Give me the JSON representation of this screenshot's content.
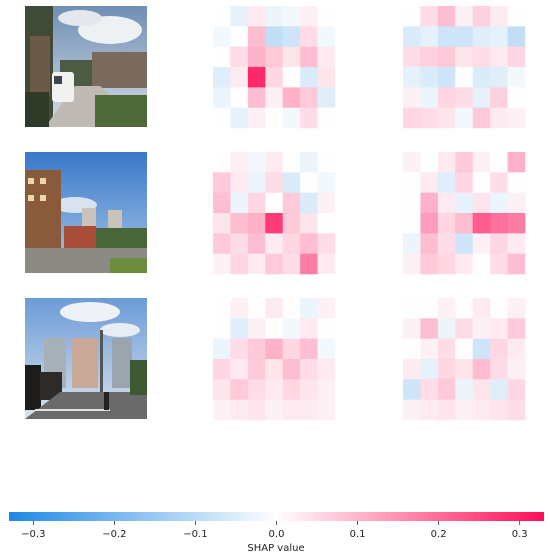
{
  "chart_data": {
    "type": "heatmap",
    "title": "",
    "xlabel": "SHAP value",
    "colorbar": {
      "label": "SHAP value",
      "ticks": [
        -0.3,
        -0.2,
        -0.1,
        0.0,
        0.1,
        0.2,
        0.3
      ],
      "tick_labels": [
        "−0.3",
        "−0.2",
        "−0.1",
        "0.0",
        "0.1",
        "0.2",
        "0.3"
      ],
      "range": [
        -0.33,
        0.33
      ],
      "colors": {
        "negative": "#1e88e5",
        "neutral": "#ffffff",
        "positive": "#ff0d57"
      }
    },
    "rows": [
      {
        "image": "street with parked white van and trees",
        "panels": [
          [
            [
              0.0,
              -0.04,
              0.03,
              -0.03,
              -0.02,
              0.02,
              0.0
            ],
            [
              -0.02,
              0.0,
              0.1,
              -0.1,
              -0.08,
              0.05,
              -0.02
            ],
            [
              0.0,
              0.05,
              0.12,
              0.08,
              0.04,
              0.1,
              0.03
            ],
            [
              -0.05,
              0.03,
              0.33,
              0.06,
              0.0,
              -0.06,
              0.04
            ],
            [
              -0.03,
              0.0,
              0.1,
              0.02,
              0.12,
              0.08,
              -0.05
            ],
            [
              0.0,
              -0.04,
              0.02,
              0.0,
              -0.02,
              0.05,
              0.0
            ]
          ],
          [
            [
              0.0,
              0.05,
              0.1,
              0.02,
              0.07,
              0.03,
              0.0
            ],
            [
              -0.06,
              -0.04,
              -0.08,
              -0.08,
              -0.05,
              -0.04,
              -0.1
            ],
            [
              0.05,
              0.07,
              0.08,
              0.04,
              0.05,
              0.03,
              0.06
            ],
            [
              -0.04,
              -0.06,
              -0.08,
              0.0,
              -0.06,
              -0.05,
              -0.02
            ],
            [
              0.02,
              -0.03,
              0.06,
              0.05,
              -0.04,
              0.07,
              0.0
            ],
            [
              0.06,
              0.05,
              0.04,
              -0.02,
              0.08,
              0.03,
              0.02
            ]
          ]
        ]
      },
      {
        "image": "buildings and courtyard under blue sky",
        "panels": [
          [
            [
              0.0,
              0.02,
              -0.02,
              0.03,
              0.0,
              -0.03,
              0.0
            ],
            [
              0.08,
              0.03,
              -0.03,
              0.05,
              -0.06,
              0.0,
              -0.02
            ],
            [
              0.1,
              -0.03,
              0.06,
              0.0,
              0.08,
              -0.06,
              0.02
            ],
            [
              0.04,
              0.1,
              0.12,
              0.3,
              0.08,
              0.04,
              0.0
            ],
            [
              0.08,
              0.05,
              0.1,
              0.03,
              0.06,
              0.1,
              0.05
            ],
            [
              0.02,
              0.06,
              0.03,
              0.08,
              0.05,
              0.2,
              0.03
            ]
          ],
          [
            [
              0.02,
              0.0,
              0.03,
              0.08,
              0.02,
              0.0,
              0.12
            ],
            [
              0.0,
              0.03,
              -0.05,
              0.06,
              0.0,
              0.05,
              0.0
            ],
            [
              0.0,
              0.12,
              0.03,
              -0.04,
              0.04,
              -0.03,
              0.02
            ],
            [
              0.0,
              0.15,
              0.06,
              0.1,
              0.25,
              0.22,
              0.2
            ],
            [
              -0.03,
              0.1,
              0.05,
              -0.08,
              0.02,
              0.06,
              0.03
            ],
            [
              0.02,
              0.08,
              0.06,
              0.03,
              0.0,
              0.05,
              0.1
            ]
          ]
        ]
      },
      {
        "image": "street scene with tall buildings and pedestrian",
        "panels": [
          [
            [
              0.0,
              0.02,
              0.0,
              0.03,
              0.0,
              -0.03,
              0.02
            ],
            [
              0.0,
              -0.05,
              0.02,
              0.0,
              -0.02,
              0.03,
              0.0
            ],
            [
              -0.03,
              0.05,
              0.08,
              0.12,
              0.06,
              0.1,
              -0.02
            ],
            [
              0.06,
              0.03,
              0.08,
              0.04,
              0.1,
              0.05,
              0.03
            ],
            [
              0.04,
              0.08,
              0.05,
              0.03,
              0.06,
              0.04,
              0.02
            ],
            [
              0.02,
              0.03,
              0.04,
              0.02,
              0.03,
              0.03,
              0.02
            ]
          ],
          [
            [
              0.0,
              0.0,
              0.02,
              0.0,
              0.03,
              0.0,
              0.02
            ],
            [
              0.02,
              0.1,
              -0.03,
              0.05,
              0.02,
              0.03,
              0.08
            ],
            [
              0.0,
              0.02,
              0.05,
              0.0,
              -0.08,
              0.06,
              0.03
            ],
            [
              0.03,
              -0.04,
              0.06,
              0.04,
              0.1,
              0.05,
              0.02
            ],
            [
              -0.08,
              0.05,
              0.08,
              -0.03,
              0.04,
              -0.05,
              0.06
            ],
            [
              0.02,
              0.03,
              0.04,
              0.02,
              0.03,
              0.04,
              0.05
            ]
          ]
        ]
      }
    ]
  }
}
